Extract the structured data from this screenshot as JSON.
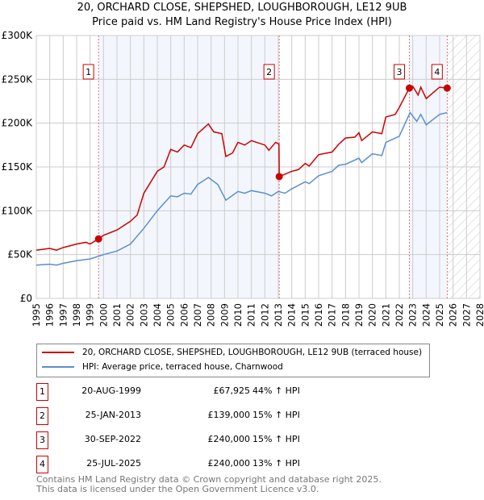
{
  "chart_data": {
    "type": "line",
    "title": "20, ORCHARD CLOSE, SHEPSHED, LOUGHBOROUGH, LE12 9UB",
    "subtitle": "Price paid vs. HM Land Registry's House Price Index (HPI)",
    "xlim": [
      1995,
      2028
    ],
    "ylim": [
      0,
      300000
    ],
    "x_ticks": [
      "1995",
      "1996",
      "1997",
      "1998",
      "1999",
      "2000",
      "2001",
      "2002",
      "2003",
      "2004",
      "2005",
      "2006",
      "2007",
      "2008",
      "2009",
      "2010",
      "2011",
      "2012",
      "2013",
      "2014",
      "2015",
      "2016",
      "2017",
      "2018",
      "2019",
      "2020",
      "2021",
      "2022",
      "2023",
      "2024",
      "2025",
      "2026",
      "2027",
      "2028"
    ],
    "y_ticks": [
      {
        "v": 0,
        "label": "£0"
      },
      {
        "v": 50000,
        "label": "£50K"
      },
      {
        "v": 100000,
        "label": "£100K"
      },
      {
        "v": 150000,
        "label": "£150K"
      },
      {
        "v": 200000,
        "label": "£200K"
      },
      {
        "v": 250000,
        "label": "£250K"
      },
      {
        "v": 300000,
        "label": "£300K"
      }
    ],
    "grid": true,
    "series": [
      {
        "name": "20, ORCHARD CLOSE, SHEPSHED, LOUGHBOROUGH, LE12 9UB (terraced house)",
        "color": "#cc0000",
        "points": [
          [
            1995,
            55000
          ],
          [
            1996,
            57000
          ],
          [
            1996.5,
            55000
          ],
          [
            1997,
            58000
          ],
          [
            1998,
            62000
          ],
          [
            1998.7,
            64000
          ],
          [
            1999,
            62000
          ],
          [
            1999.63,
            67925
          ],
          [
            2000,
            72000
          ],
          [
            2001,
            78000
          ],
          [
            2002,
            88000
          ],
          [
            2002.5,
            95000
          ],
          [
            2003,
            120000
          ],
          [
            2004,
            145000
          ],
          [
            2004.5,
            150000
          ],
          [
            2005,
            170000
          ],
          [
            2005.5,
            167000
          ],
          [
            2006,
            175000
          ],
          [
            2006.5,
            172000
          ],
          [
            2007,
            188000
          ],
          [
            2007.8,
            199000
          ],
          [
            2008.2,
            190000
          ],
          [
            2008.8,
            188000
          ],
          [
            2009.1,
            162000
          ],
          [
            2009.6,
            166000
          ],
          [
            2010,
            178000
          ],
          [
            2010.5,
            175000
          ],
          [
            2011,
            180000
          ],
          [
            2012,
            175000
          ],
          [
            2012.3,
            169000
          ],
          [
            2012.8,
            178000
          ],
          [
            2013.05,
            176000
          ],
          [
            2013.07,
            139000
          ],
          [
            2014,
            145000
          ],
          [
            2014.5,
            147000
          ],
          [
            2015,
            154000
          ],
          [
            2015.3,
            151000
          ],
          [
            2016,
            164000
          ],
          [
            2017,
            167000
          ],
          [
            2017.5,
            176000
          ],
          [
            2018,
            183000
          ],
          [
            2018.7,
            184000
          ],
          [
            2019,
            189000
          ],
          [
            2019.2,
            180000
          ],
          [
            2020,
            190000
          ],
          [
            2020.7,
            188000
          ],
          [
            2021,
            207000
          ],
          [
            2021.7,
            210000
          ],
          [
            2022,
            218000
          ],
          [
            2022.75,
            240000
          ],
          [
            2023,
            242000
          ],
          [
            2023.4,
            232000
          ],
          [
            2023.6,
            241000
          ],
          [
            2024,
            228000
          ],
          [
            2025,
            241000
          ],
          [
            2025.56,
            240000
          ]
        ]
      },
      {
        "name": "HPI: Average price, terraced house, Charnwood",
        "color": "#5b8fd0",
        "points": [
          [
            1995,
            38000
          ],
          [
            1996,
            39000
          ],
          [
            1996.5,
            38000
          ],
          [
            1997,
            40000
          ],
          [
            1998,
            43000
          ],
          [
            1999,
            45000
          ],
          [
            2000,
            50000
          ],
          [
            2001,
            54000
          ],
          [
            2002,
            62000
          ],
          [
            2003,
            80000
          ],
          [
            2004,
            100000
          ],
          [
            2005,
            117000
          ],
          [
            2005.5,
            116000
          ],
          [
            2006,
            120000
          ],
          [
            2006.5,
            119000
          ],
          [
            2007,
            130000
          ],
          [
            2007.8,
            138000
          ],
          [
            2008.5,
            130000
          ],
          [
            2009.1,
            112000
          ],
          [
            2010,
            122000
          ],
          [
            2010.5,
            120000
          ],
          [
            2011,
            123000
          ],
          [
            2012,
            120000
          ],
          [
            2012.5,
            117000
          ],
          [
            2013,
            122000
          ],
          [
            2013.5,
            120000
          ],
          [
            2014,
            125000
          ],
          [
            2015,
            133000
          ],
          [
            2015.3,
            131000
          ],
          [
            2016,
            140000
          ],
          [
            2017,
            145000
          ],
          [
            2017.5,
            152000
          ],
          [
            2018,
            153000
          ],
          [
            2019,
            160000
          ],
          [
            2019.2,
            155000
          ],
          [
            2020,
            165000
          ],
          [
            2020.7,
            163000
          ],
          [
            2021,
            178000
          ],
          [
            2022,
            185000
          ],
          [
            2022.8,
            212000
          ],
          [
            2023.3,
            202000
          ],
          [
            2023.6,
            210000
          ],
          [
            2024,
            198000
          ],
          [
            2025,
            210000
          ],
          [
            2025.56,
            212000
          ]
        ]
      }
    ],
    "sales": [
      {
        "n": "1",
        "x": 1999.63,
        "y": 67925
      },
      {
        "n": "2",
        "x": 2013.07,
        "y": 139000
      },
      {
        "n": "3",
        "x": 2022.75,
        "y": 240000
      },
      {
        "n": "4",
        "x": 2025.56,
        "y": 240000
      }
    ],
    "shaded": [
      [
        1999.63,
        2013.07
      ],
      [
        2022.75,
        2025.56
      ]
    ],
    "forecast_from": 2025.56
  },
  "legend": [
    "20, ORCHARD CLOSE, SHEPSHED, LOUGHBOROUGH, LE12 9UB (terraced house)",
    "HPI: Average price, terraced house, Charnwood"
  ],
  "transactions": [
    {
      "n": "1",
      "date": "20-AUG-1999",
      "price": "£67,925",
      "hpi": "44% ↑ HPI"
    },
    {
      "n": "2",
      "date": "25-JAN-2013",
      "price": "£139,000",
      "hpi": "15% ↑ HPI"
    },
    {
      "n": "3",
      "date": "30-SEP-2022",
      "price": "£240,000",
      "hpi": "15% ↑ HPI"
    },
    {
      "n": "4",
      "date": "25-JUL-2025",
      "price": "£240,000",
      "hpi": "13% ↑ HPI"
    }
  ],
  "footer": [
    "Contains HM Land Registry data © Crown copyright and database right 2025.",
    "This data is licensed under the Open Government Licence v3.0."
  ]
}
